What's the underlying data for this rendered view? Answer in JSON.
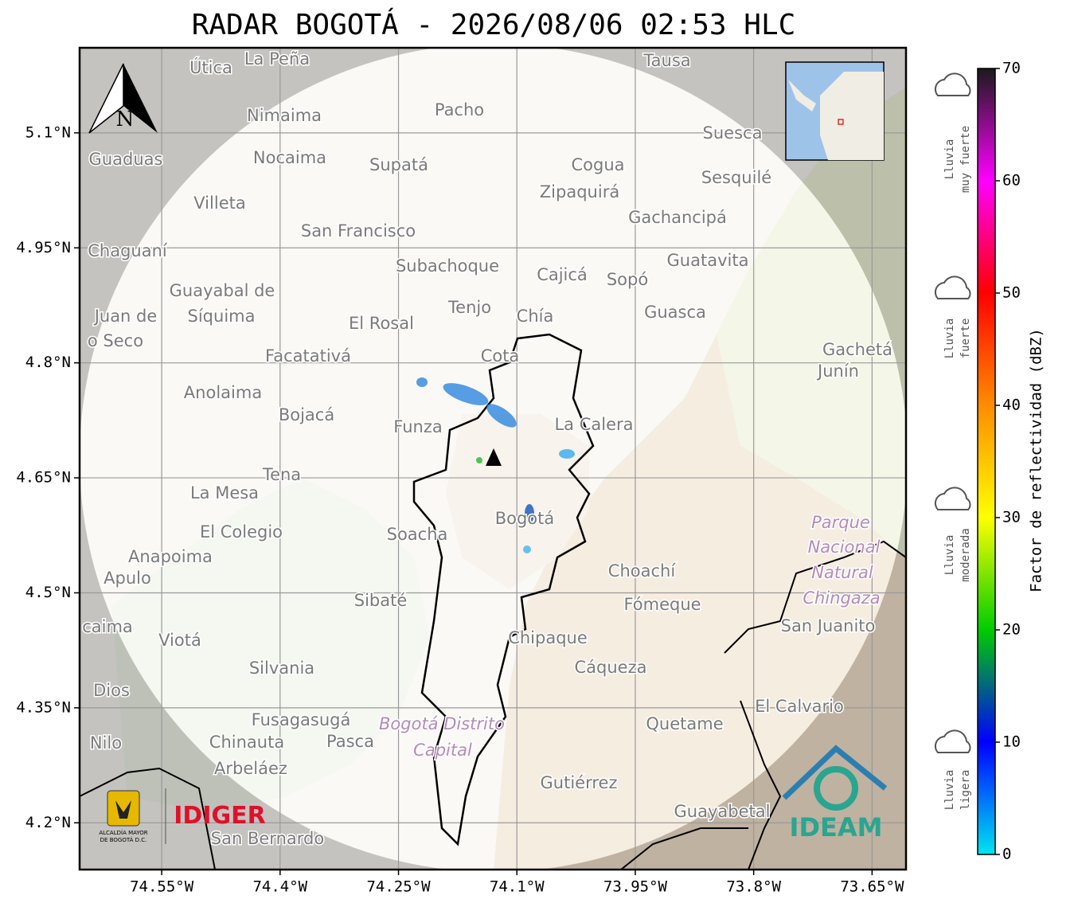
{
  "map": {
    "title": "RADAR BOGOTÁ - 2026/08/06 02:53 HLC",
    "xlim": [
      -74.654,
      -73.607
    ],
    "ylim": [
      4.139,
      5.211
    ],
    "xticks": [
      {
        "value": -74.55,
        "label": "74.55°W"
      },
      {
        "value": -74.4,
        "label": "74.4°W"
      },
      {
        "value": -74.25,
        "label": "74.25°W"
      },
      {
        "value": -74.1,
        "label": "74.1°W"
      },
      {
        "value": -73.95,
        "label": "73.95°W"
      },
      {
        "value": -73.8,
        "label": "73.8°W"
      },
      {
        "value": -73.65,
        "label": "73.65°W"
      }
    ],
    "yticks": [
      {
        "value": 5.1,
        "label": "5.1°N"
      },
      {
        "value": 4.95,
        "label": "4.95°N"
      },
      {
        "value": 4.8,
        "label": "4.8°N"
      },
      {
        "value": 4.65,
        "label": "4.65°N"
      },
      {
        "value": 4.5,
        "label": "4.5°N"
      },
      {
        "value": 4.35,
        "label": "4.35°N"
      },
      {
        "value": 4.2,
        "label": "4.2°N"
      }
    ],
    "grid": true,
    "north": "N",
    "places": [
      "La Peña",
      "Útica",
      "Tausa",
      "Pacho",
      "Nimaima",
      "Guaduas",
      "Nocaima",
      "Supatá",
      "Cogua",
      "Suesca",
      "Sesquilé",
      "Zipaquirá",
      "Villeta",
      "Gachancipá",
      "San Francisco",
      "Chaguaní",
      "Guatavita",
      "Subachoque",
      "Cajicá",
      "Sopó",
      "Guayabal de",
      "Síquima",
      "Juan de",
      "o Seco",
      "Tenjo",
      "El Rosal",
      "Chía",
      "Guasca",
      "Facatativá",
      "Cota",
      "Gachetá",
      "Junín",
      "Anolaima",
      "Bojacá",
      "Funza",
      "La Calera",
      "Tena",
      "La Mesa",
      "El Colegio",
      "Soacha",
      "Bogotá",
      "Parque",
      "Nacional",
      "Natural",
      "Chingaza",
      "Anapoima",
      "Apulo",
      "Choachí",
      "Fómeque",
      "Sibaté",
      "San Juanito",
      "caima",
      "Viotá",
      "Chipaque",
      "Silvania",
      "Cáqueza",
      "Dios",
      "El Calvario",
      "Fusagasugá",
      "Bogotá Distrito",
      "Capital",
      "Quetame",
      "Nilo",
      "Chinauta",
      "Pasca",
      "Arbeláez",
      "Gutiérrez",
      "Guayabetal",
      "San Bernardo"
    ],
    "logos": {
      "alcaldia": [
        "ALCALDÍA MAYOR",
        "DE BOGOTÁ D.C."
      ],
      "idiger": "IDIGER",
      "ideam": "IDEAM"
    }
  },
  "colorbar": {
    "label": "Factor de reflectividad (dBZ)",
    "lim": [
      0,
      70
    ],
    "ticks": [
      0,
      10,
      20,
      30,
      40,
      50,
      60,
      70
    ],
    "colors": [
      "#00e5f0",
      "#0000ff",
      "#00cc00",
      "#ffff00",
      "#ff8c00",
      "#ff0000",
      "#ff00ff",
      "#1a1a1a"
    ],
    "intensity": [
      [
        "Lluvia",
        "muy fuerte"
      ],
      [
        "Lluvia",
        "fuerte"
      ],
      [
        "Lluvia",
        "moderada"
      ],
      [
        "Lluvia",
        "ligera"
      ]
    ]
  }
}
